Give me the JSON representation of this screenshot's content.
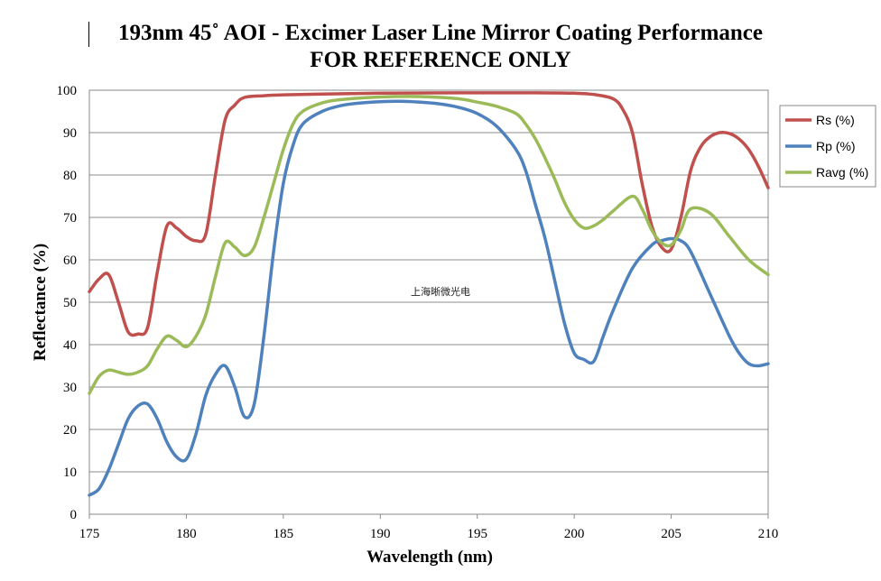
{
  "chart_data": {
    "type": "line",
    "title": "193nm 45˚ AOI - Excimer Laser Line Mirror Coating Performance",
    "subtitle": "FOR REFERENCE ONLY",
    "xlabel": "Wavelength (nm)",
    "ylabel": "Reflectance (%)",
    "xlim": [
      175,
      210
    ],
    "ylim": [
      0,
      100
    ],
    "xticks": [
      175,
      180,
      185,
      190,
      195,
      200,
      205,
      210
    ],
    "yticks": [
      0,
      10,
      20,
      30,
      40,
      50,
      60,
      70,
      80,
      90,
      100
    ],
    "grid": "horizontal",
    "legend_position": "right",
    "annotation": "上海晰微光电",
    "series": [
      {
        "name": "Rs (%)",
        "color": "#C0504D",
        "x": [
          175,
          175.5,
          176,
          176.5,
          177,
          177.5,
          178,
          178.5,
          179,
          179.5,
          180,
          180.5,
          181,
          181.5,
          182,
          182.5,
          183,
          184,
          185,
          187,
          190,
          195,
          198,
          200,
          201,
          202,
          202.5,
          203,
          203.5,
          204,
          204.5,
          205,
          205.5,
          206,
          206.5,
          207,
          207.5,
          208,
          208.5,
          209,
          209.5,
          210
        ],
        "values": [
          52.5,
          55.5,
          56.5,
          50,
          43,
          42.5,
          44,
          57,
          68,
          67.5,
          65.5,
          64.5,
          66,
          80,
          93,
          96.5,
          98.3,
          98.7,
          98.9,
          99.1,
          99.3,
          99.4,
          99.4,
          99.3,
          99,
          98,
          95.5,
          90,
          78,
          68,
          63,
          62.5,
          70,
          81,
          86.5,
          89,
          90,
          89.8,
          88.5,
          86,
          82,
          77
        ]
      },
      {
        "name": "Rp (%)",
        "color": "#4F81BD",
        "x": [
          175,
          175.5,
          176,
          176.5,
          177,
          177.5,
          178,
          178.5,
          179,
          179.5,
          180,
          180.5,
          181,
          181.5,
          182,
          182.5,
          183,
          183.5,
          184,
          184.5,
          185,
          185.5,
          186,
          187,
          188,
          189,
          190,
          191,
          192,
          193,
          194,
          195,
          196,
          197,
          197.5,
          198,
          198.5,
          199,
          199.5,
          200,
          200.5,
          201,
          201.5,
          202,
          203,
          204,
          204.5,
          205,
          205.5,
          206,
          207,
          208,
          208.5,
          209,
          209.5,
          210
        ],
        "values": [
          4.5,
          6,
          10.5,
          16.5,
          22.5,
          25.5,
          26,
          22.5,
          17,
          13.5,
          13,
          19,
          28,
          33,
          35,
          30,
          23,
          26,
          42,
          62,
          78,
          87,
          92,
          95,
          96.4,
          97,
          97.3,
          97.4,
          97.2,
          96.8,
          96,
          94.5,
          91.5,
          86,
          81,
          73,
          65,
          55,
          45,
          38,
          36.5,
          36,
          42,
          48,
          58,
          63.5,
          64.5,
          65,
          64.5,
          62,
          52,
          42,
          38,
          35.5,
          35,
          35.5
        ]
      },
      {
        "name": "Ravg (%)",
        "color": "#9BBB59",
        "x": [
          175,
          175.5,
          176,
          176.5,
          177,
          177.5,
          178,
          178.5,
          179,
          179.5,
          180,
          180.5,
          181,
          181.5,
          182,
          182.5,
          183,
          183.5,
          184,
          184.5,
          185,
          185.5,
          186,
          187,
          188,
          190,
          192,
          194,
          195,
          196,
          197,
          197.5,
          198,
          198.5,
          199,
          199.5,
          200,
          200.5,
          201,
          201.5,
          202,
          203,
          203.5,
          204,
          204.5,
          205,
          205.5,
          206,
          207,
          208,
          209,
          210
        ],
        "values": [
          28.5,
          32.5,
          34,
          33.5,
          33,
          33.5,
          35,
          39,
          42,
          41,
          39.5,
          42,
          47,
          56,
          64,
          63,
          61,
          63,
          70,
          78,
          86,
          92,
          95,
          97,
          97.8,
          98.4,
          98.5,
          98,
          97.2,
          96.2,
          94.5,
          92,
          88.5,
          84,
          79,
          73.5,
          69.5,
          67.5,
          68,
          69.5,
          71.5,
          75,
          72,
          67,
          64,
          63.5,
          67,
          72,
          71,
          65.5,
          60,
          56.5
        ]
      }
    ]
  }
}
